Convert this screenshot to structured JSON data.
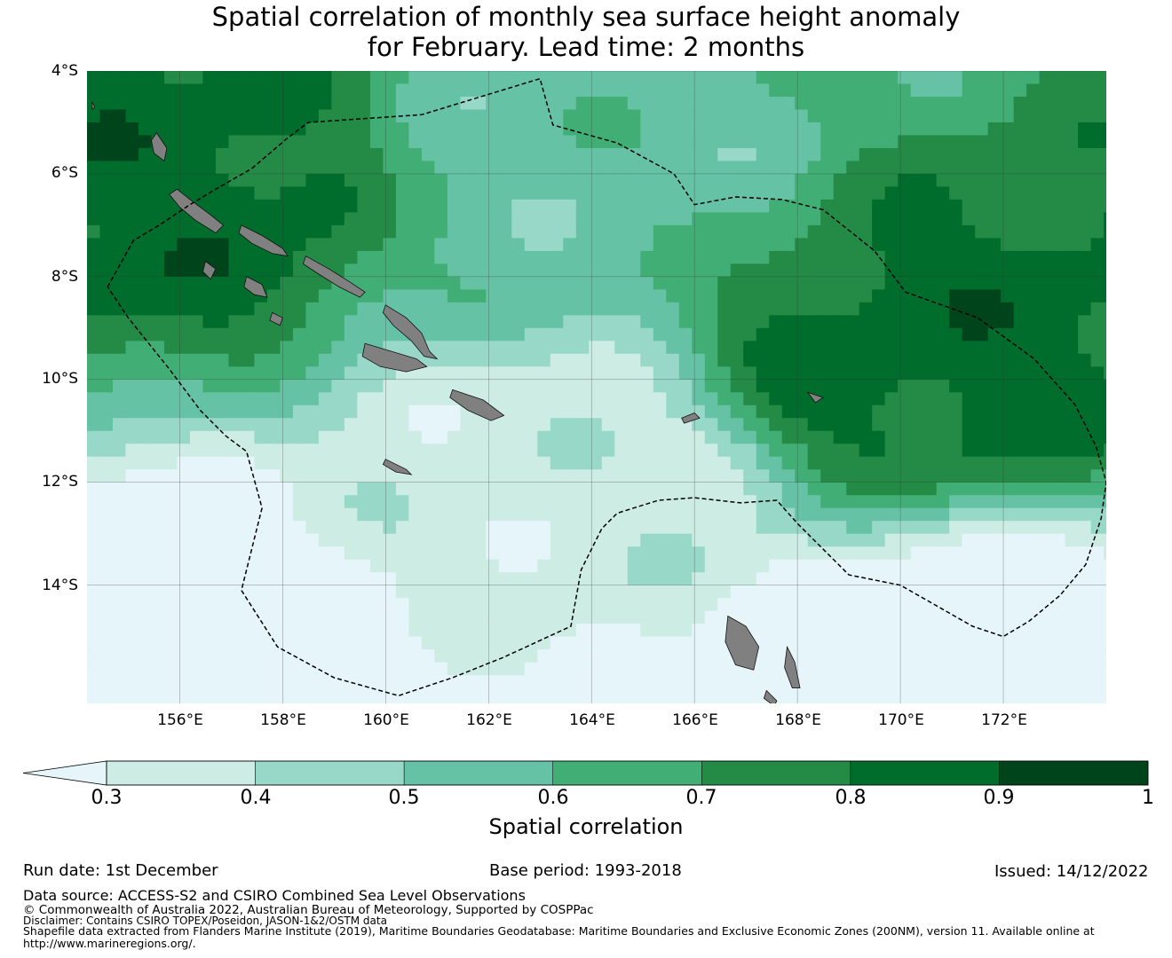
{
  "title": {
    "line1": "Spatial correlation of monthly sea surface height anomaly",
    "line2": "for February. Lead time: 2 months"
  },
  "axes": {
    "lat_labels": [
      "4°S",
      "6°S",
      "8°S",
      "10°S",
      "12°S",
      "14°S"
    ],
    "lon_labels": [
      "156°E",
      "158°E",
      "160°E",
      "162°E",
      "164°E",
      "166°E",
      "168°E",
      "170°E",
      "172°E"
    ]
  },
  "chart_data": {
    "type": "heatmap",
    "title": "Spatial correlation of monthly sea surface height anomaly for February. Lead time: 2 months",
    "xlabel": "",
    "ylabel": "",
    "lon_range": [
      154.2,
      174.0
    ],
    "lat_range": [
      -16.3,
      -4.0
    ],
    "grid": true,
    "colorbar": {
      "label": "Spatial correlation",
      "ticks": [
        "0.3",
        "0.4",
        "0.5",
        "0.6",
        "0.7",
        "0.8",
        "0.9",
        "1"
      ],
      "bins": [
        {
          "min": 0.3,
          "max": 0.4,
          "color": "#ccece4"
        },
        {
          "min": 0.4,
          "max": 0.5,
          "color": "#98d8c8"
        },
        {
          "min": 0.5,
          "max": 0.6,
          "color": "#66c2a4"
        },
        {
          "min": 0.6,
          "max": 0.7,
          "color": "#41ae76"
        },
        {
          "min": 0.7,
          "max": 0.8,
          "color": "#238b45"
        },
        {
          "min": 0.8,
          "max": 0.9,
          "color": "#006d2c"
        },
        {
          "min": 0.9,
          "max": 1.0,
          "color": "#00441b"
        }
      ],
      "under_color": "#e5f5f9",
      "extend": "min"
    },
    "regions": [
      {
        "description": "northwest",
        "lon": [
          154.2,
          158.0
        ],
        "lat": [
          -4.0,
          -9.0
        ],
        "value_range": [
          0.8,
          0.9
        ]
      },
      {
        "description": "north central",
        "lon": [
          161.0,
          166.0
        ],
        "lat": [
          -4.0,
          -8.0
        ],
        "value_range": [
          0.5,
          0.6
        ]
      },
      {
        "description": "east",
        "lon": [
          167.0,
          174.0
        ],
        "lat": [
          -8.0,
          -11.0
        ],
        "value_range": [
          0.8,
          0.9
        ]
      },
      {
        "description": "central",
        "lon": [
          158.0,
          168.0
        ],
        "lat": [
          -11.0,
          -12.5
        ],
        "value_range": [
          0.3,
          0.4
        ]
      },
      {
        "description": "southwest",
        "lon": [
          154.2,
          156.0
        ],
        "lat": [
          -14.5,
          -16.0
        ],
        "value_range": [
          0.0,
          0.3
        ]
      },
      {
        "description": "southeast",
        "lon": [
          169.0,
          174.0
        ],
        "lat": [
          -15.5,
          -16.3
        ],
        "value_range": [
          0.0,
          0.3
        ]
      }
    ]
  },
  "colors": {
    "land": "#808080",
    "boundary": "#000000",
    "grid": "#333333"
  },
  "footer": {
    "run_date": "Run date: 1st December",
    "base_period": "Base period: 1993-2018",
    "issued": "Issued: 14/12/2022",
    "data_source": "Data source: ACCESS-S2 and CSIRO Combined Sea Level Observations",
    "copyright": "© Commonwealth of Australia 2022, Australian Bureau of Meteorology, Supported by COSPPac",
    "disclaimer": "Disclaimer: Contains CSIRO TOPEX/Poseidon, JASON-1&2/OSTM data",
    "shapefile_line1": "Shapefile data extracted from Flanders Marine Institute (2019), Maritime Boundaries Geodatabase: Maritime Boundaries and Exclusive Economic Zones (200NM), version 11. Available online at",
    "shapefile_line2": "http://www.marineregions.org/."
  }
}
